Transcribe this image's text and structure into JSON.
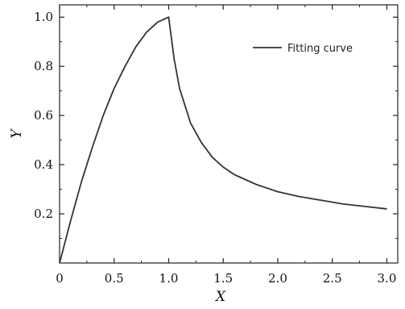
{
  "chart_data": {
    "type": "line",
    "title": "",
    "xlabel": "X",
    "ylabel": "Y",
    "xlim": [
      0,
      3.1
    ],
    "ylim": [
      0,
      1.05
    ],
    "x_ticks": [
      "0",
      "0.5",
      "1.0",
      "1.5",
      "2.0",
      "2.5",
      "3.0"
    ],
    "y_ticks": [
      "0.2",
      "0.4",
      "0.6",
      "0.8",
      "1.0"
    ],
    "grid": false,
    "legend_position": "top-right",
    "series": [
      {
        "name": "Fitting curve",
        "color": "#333333",
        "x": [
          0,
          0.1,
          0.2,
          0.3,
          0.4,
          0.5,
          0.6,
          0.7,
          0.8,
          0.9,
          1.0,
          1.05,
          1.1,
          1.2,
          1.3,
          1.4,
          1.5,
          1.6,
          1.7,
          1.8,
          1.9,
          2.0,
          2.2,
          2.4,
          2.6,
          2.8,
          3.0
        ],
        "y": [
          0,
          0.17,
          0.33,
          0.47,
          0.6,
          0.71,
          0.8,
          0.88,
          0.94,
          0.98,
          1.0,
          0.83,
          0.71,
          0.57,
          0.49,
          0.43,
          0.39,
          0.36,
          0.34,
          0.32,
          0.305,
          0.29,
          0.27,
          0.255,
          0.24,
          0.23,
          0.22
        ]
      }
    ]
  }
}
